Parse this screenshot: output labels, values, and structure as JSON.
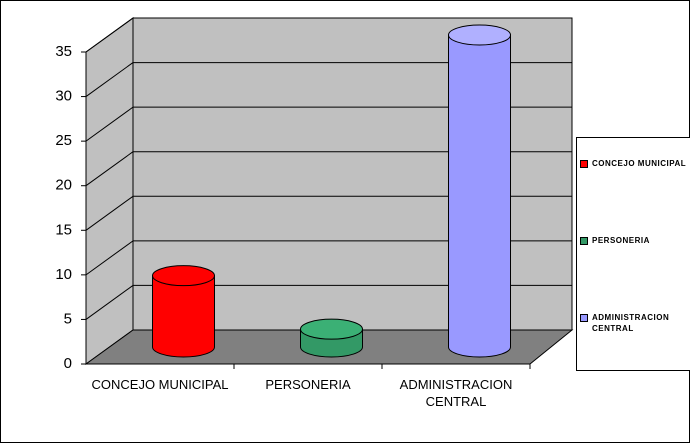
{
  "chart_data": {
    "type": "bar",
    "categories": [
      "CONCEJO MUNICIPAL",
      "PERSONERIA",
      "ADMINISTRACION CENTRAL"
    ],
    "series": [
      {
        "name": "CONCEJO MUNICIPAL",
        "color": "#ff0000"
      },
      {
        "name": "PERSONERIA",
        "color": "#339966"
      },
      {
        "name": "ADMINISTRACION CENTRAL",
        "color": "#9999ff"
      }
    ],
    "values": [
      8,
      2,
      35
    ],
    "ylim": [
      0,
      35
    ],
    "yticks": [
      0,
      5,
      10,
      15,
      20,
      25,
      30,
      35
    ],
    "grid": true,
    "legend": "right"
  }
}
